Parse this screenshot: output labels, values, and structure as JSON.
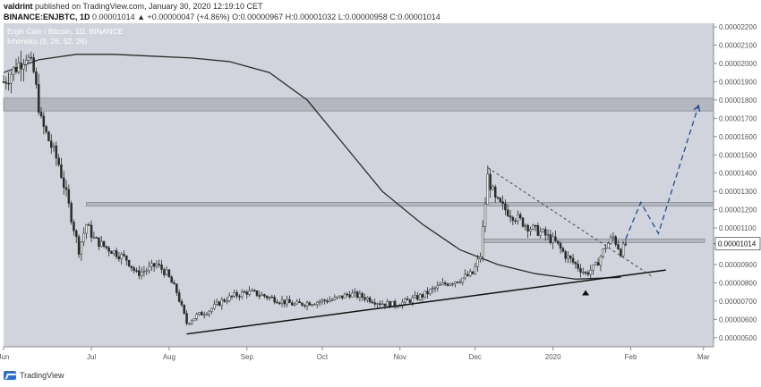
{
  "header": {
    "author": "valdrint",
    "published": "published on TradingView.com, January 30, 2020 12:19:10 CET",
    "symbol": "BINANCE:ENJBTC, 1D",
    "change": "0.00001014 ▲ +0.00000047 (+4.86%)",
    "ohlc": "O:0.00000967 H:0.00001032 L:0.00000958 C:0.00001014"
  },
  "footer": {
    "brand": "TradingView"
  },
  "chart_data": {
    "type": "candlestick",
    "title": "Enjin Coin / Bitcoin, 1D, BINANCE",
    "indicator_label": "Ichimoku (9, 26, 52, 26)",
    "current_price_label": "0.00001014",
    "x_ticks": [
      "Jun",
      "Jul",
      "Aug",
      "Sep",
      "Oct",
      "Nov",
      "Dec",
      "2020",
      "Feb",
      "Mar"
    ],
    "y_ticks": [
      "0.00002200",
      "0.00002100",
      "0.00002000",
      "0.00001900",
      "0.00001800",
      "0.00001700",
      "0.00001600",
      "0.00001500",
      "0.00001400",
      "0.00001300",
      "0.00001200",
      "0.00001100",
      "0.00001014",
      "0.00000900",
      "0.00000800",
      "0.00000700",
      "0.00000600",
      "0.00000500"
    ],
    "ylim": [
      4.5e-06,
      2.22e-05
    ],
    "x_range": [
      "2019-05-27",
      "2020-03-05"
    ],
    "price_path": [
      [
        "2019-05-27",
        1.9e-05
      ],
      [
        "2019-06-01",
        1.98e-05
      ],
      [
        "2019-06-05",
        2.05e-05
      ],
      [
        "2019-06-08",
        1.95e-05
      ],
      [
        "2019-06-11",
        1.68e-05
      ],
      [
        "2019-06-14",
        1.58e-05
      ],
      [
        "2019-06-18",
        1.45e-05
      ],
      [
        "2019-06-21",
        1.28e-05
      ],
      [
        "2019-06-24",
        1.1e-05
      ],
      [
        "2019-06-26",
        9.8e-06
      ],
      [
        "2019-06-29",
        1.12e-05
      ],
      [
        "2019-07-02",
        1.04e-05
      ],
      [
        "2019-07-06",
        1e-05
      ],
      [
        "2019-07-10",
        9.7e-06
      ],
      [
        "2019-07-15",
        9.3e-06
      ],
      [
        "2019-07-19",
        8.5e-06
      ],
      [
        "2019-07-23",
        8.7e-06
      ],
      [
        "2019-07-27",
        9e-06
      ],
      [
        "2019-07-31",
        8.5e-06
      ],
      [
        "2019-08-04",
        7.5e-06
      ],
      [
        "2019-08-08",
        5.8e-06
      ],
      [
        "2019-08-12",
        6.2e-06
      ],
      [
        "2019-08-17",
        6.5e-06
      ],
      [
        "2019-08-22",
        7e-06
      ],
      [
        "2019-08-27",
        7.3e-06
      ],
      [
        "2019-09-01",
        7.5e-06
      ],
      [
        "2019-09-05",
        7.4e-06
      ],
      [
        "2019-09-10",
        7.2e-06
      ],
      [
        "2019-09-15",
        7e-06
      ],
      [
        "2019-09-20",
        6.8e-06
      ],
      [
        "2019-09-25",
        6.9e-06
      ],
      [
        "2019-10-01",
        7e-06
      ],
      [
        "2019-10-06",
        7.1e-06
      ],
      [
        "2019-10-12",
        7.4e-06
      ],
      [
        "2019-10-18",
        7.2e-06
      ],
      [
        "2019-10-24",
        6.9e-06
      ],
      [
        "2019-10-30",
        6.8e-06
      ],
      [
        "2019-11-04",
        7e-06
      ],
      [
        "2019-11-10",
        7.3e-06
      ],
      [
        "2019-11-15",
        7.7e-06
      ],
      [
        "2019-11-20",
        8e-06
      ],
      [
        "2019-11-25",
        8.2e-06
      ],
      [
        "2019-11-30",
        8.5e-06
      ],
      [
        "2019-12-03",
        9.5e-06
      ],
      [
        "2019-12-06",
        1.38e-05
      ],
      [
        "2019-12-09",
        1.25e-05
      ],
      [
        "2019-12-13",
        1.2e-05
      ],
      [
        "2019-12-18",
        1.15e-05
      ],
      [
        "2019-12-23",
        1.1e-05
      ],
      [
        "2019-12-28",
        1.07e-05
      ],
      [
        "2020-01-02",
        1.02e-05
      ],
      [
        "2020-01-06",
        9.5e-06
      ],
      [
        "2020-01-10",
        9e-06
      ],
      [
        "2020-01-14",
        8.5e-06
      ],
      [
        "2020-01-18",
        8.9e-06
      ],
      [
        "2020-01-22",
        1e-05
      ],
      [
        "2020-01-25",
        1.05e-05
      ],
      [
        "2020-01-28",
        9.7e-06
      ],
      [
        "2020-01-30",
        1.01e-05
      ]
    ],
    "moving_average": [
      [
        "2019-05-27",
        1.95e-05
      ],
      [
        "2019-06-10",
        2.02e-05
      ],
      [
        "2019-06-25",
        2.05e-05
      ],
      [
        "2019-07-10",
        2.05e-05
      ],
      [
        "2019-07-25",
        2.04e-05
      ],
      [
        "2019-08-10",
        2.03e-05
      ],
      [
        "2019-08-25",
        2.01e-05
      ],
      [
        "2019-09-10",
        1.95e-05
      ],
      [
        "2019-09-25",
        1.8e-05
      ],
      [
        "2019-10-10",
        1.55e-05
      ],
      [
        "2019-10-25",
        1.3e-05
      ],
      [
        "2019-11-10",
        1.12e-05
      ],
      [
        "2019-11-25",
        9.8e-06
      ],
      [
        "2019-12-10",
        9e-06
      ],
      [
        "2019-12-25",
        8.5e-06
      ],
      [
        "2020-01-10",
        8.2e-06
      ],
      [
        "2020-01-28",
        8.3e-06
      ]
    ],
    "resistance_zones": [
      [
        1.74e-05,
        1.81e-05
      ],
      [
        1.22e-05,
        1.24e-05
      ],
      [
        1.02e-05,
        1.04e-05
      ]
    ],
    "support_line": [
      [
        "2019-08-08",
        5.2e-06
      ],
      [
        "2020-02-15",
        8.7e-06
      ]
    ],
    "descending_line": [
      [
        "2019-12-06",
        1.43e-05
      ],
      [
        "2020-02-10",
        8.3e-06
      ]
    ],
    "projection_path": [
      [
        "2020-01-30",
        1.04e-05
      ],
      [
        "2020-02-05",
        1.24e-05
      ],
      [
        "2020-02-12",
        1.07e-05
      ],
      [
        "2020-02-28",
        1.77e-05
      ]
    ],
    "colors": {
      "plot_bg": "#d1d4dc",
      "zone": "#b4b7bf",
      "candle": "#2b2b2b",
      "projection": "#1f4e96",
      "axis_text": "#555555"
    }
  }
}
